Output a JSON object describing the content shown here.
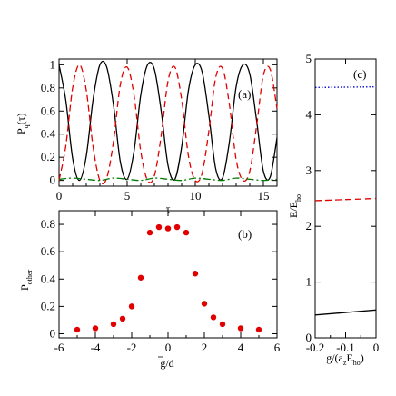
{
  "chart_data": [
    {
      "panel": "a",
      "type": "line",
      "panel_label": "(a)",
      "xlabel": "τ",
      "ylabel_main": "P",
      "ylabel_sub": "q",
      "ylabel_tail": "(τ)",
      "xlim": [
        0,
        16
      ],
      "ylim": [
        -0.05,
        1.05
      ],
      "xticks": [
        0,
        5,
        10,
        15
      ],
      "yticks": [
        0,
        0.2,
        0.4,
        0.6,
        0.8,
        1
      ],
      "ytick_labels": [
        "0",
        "0.2",
        "0.4",
        "0.6",
        "0.8",
        "1"
      ],
      "series": [
        {
          "style": "solid",
          "color": "#000000",
          "x": [
            0,
            0.5,
            1,
            1.5,
            2,
            2.5,
            3,
            3.5,
            4,
            4.5,
            5,
            5.5,
            6,
            6.5,
            7,
            7.5,
            8,
            8.5,
            9,
            9.5,
            10,
            10.5,
            11,
            11.5,
            12,
            12.5,
            13,
            13.5,
            14,
            14.5,
            15,
            15.5,
            16
          ],
          "y": [
            1.0,
            0.69,
            0.19,
            0.0,
            0.21,
            0.7,
            1.0,
            0.98,
            0.65,
            0.16,
            0.01,
            0.25,
            0.74,
            1.0,
            0.96,
            0.6,
            0.13,
            0.01,
            0.29,
            0.78,
            1.0,
            0.94,
            0.56,
            0.1,
            0.02,
            0.33,
            0.81,
            1.0,
            0.92,
            0.52,
            0.08,
            0.03,
            0.37
          ]
        },
        {
          "style": "dashed",
          "color": "#e00000",
          "x": [
            0,
            0.5,
            1,
            1.5,
            2,
            2.5,
            3,
            3.5,
            4,
            4.5,
            5,
            5.5,
            6,
            6.5,
            7,
            7.5,
            8,
            8.5,
            9,
            9.5,
            10,
            10.5,
            11,
            11.5,
            12,
            12.5,
            13,
            13.5,
            14,
            14.5,
            15,
            15.5,
            16
          ],
          "y": [
            0.0,
            0.3,
            0.8,
            1.0,
            0.78,
            0.29,
            0.0,
            0.02,
            0.34,
            0.83,
            0.98,
            0.74,
            0.25,
            0.0,
            0.04,
            0.39,
            0.86,
            0.98,
            0.7,
            0.21,
            0.0,
            0.06,
            0.43,
            0.89,
            0.97,
            0.66,
            0.18,
            0.0,
            0.08,
            0.47,
            0.91,
            0.96,
            0.62
          ]
        },
        {
          "style": "dashdot",
          "color": "#007a00",
          "x": [
            0,
            1,
            2,
            3,
            4,
            5,
            6,
            7,
            8,
            9,
            10,
            11,
            12,
            13,
            14,
            15,
            16
          ],
          "y": [
            0.01,
            0.02,
            0.01,
            0.0,
            0.02,
            0.01,
            0.0,
            0.02,
            0.01,
            0.0,
            0.02,
            0.01,
            0.0,
            0.02,
            0.01,
            0.0,
            0.01
          ]
        }
      ]
    },
    {
      "panel": "b",
      "type": "scatter",
      "panel_label": "(b)",
      "xlabel": "g/d",
      "ylabel_main": "P",
      "ylabel_sub": "other",
      "xlim": [
        -6,
        6
      ],
      "ylim": [
        -0.03,
        0.9
      ],
      "xticks": [
        -6,
        -4,
        -2,
        0,
        2,
        4,
        6
      ],
      "yticks": [
        0,
        0.2,
        0.4,
        0.6,
        0.8
      ],
      "ytick_labels": [
        "0",
        "0.2",
        "0.4",
        "0.6",
        "0.8"
      ],
      "color": "#e00000",
      "x": [
        -5,
        -4,
        -3,
        -2.5,
        -2,
        -1.5,
        -1,
        -0.5,
        0,
        0.5,
        1,
        1.5,
        2,
        2.5,
        3,
        4,
        5
      ],
      "y": [
        0.03,
        0.04,
        0.07,
        0.11,
        0.2,
        0.41,
        0.74,
        0.78,
        0.77,
        0.78,
        0.74,
        0.44,
        0.22,
        0.12,
        0.07,
        0.04,
        0.03
      ]
    },
    {
      "panel": "c",
      "type": "line",
      "panel_label": "(c)",
      "xlabel_main": "g/(a",
      "xlabel_sub1": "z",
      "xlabel_mid": "E",
      "xlabel_sub2": "ho",
      "xlabel_tail": ")",
      "ylabel_main": "E/E",
      "ylabel_sub": "ho",
      "xlim": [
        -0.2,
        0
      ],
      "ylim": [
        0,
        5
      ],
      "xticks": [
        -0.2,
        -0.1,
        0
      ],
      "xtick_labels": [
        "-0.2",
        "-0.1",
        "0"
      ],
      "yticks": [
        0,
        1,
        2,
        3,
        4,
        5
      ],
      "series": [
        {
          "style": "solid",
          "color": "#000000",
          "x": [
            -0.2,
            0
          ],
          "y": [
            0.41,
            0.5
          ]
        },
        {
          "style": "dashed",
          "color": "#e00000",
          "x": [
            -0.2,
            0
          ],
          "y": [
            2.46,
            2.5
          ]
        },
        {
          "style": "dotted",
          "color": "#0000cc",
          "x": [
            -0.2,
            0
          ],
          "y": [
            4.49,
            4.5
          ]
        }
      ]
    }
  ]
}
